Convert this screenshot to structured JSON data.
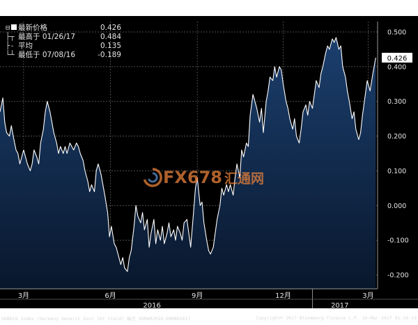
{
  "chart_data": {
    "type": "area",
    "title": "",
    "ylim": [
      -0.24,
      0.53
    ],
    "yticks": [
      0.5,
      0.4,
      0.3,
      0.2,
      0.1,
      0.0,
      -0.1,
      -0.2
    ],
    "ytick_labels": [
      "0.500",
      "0.400",
      "0.300",
      "0.200",
      "0.100",
      "0.000",
      "-0.100",
      "-0.200"
    ],
    "xticks": [
      {
        "date": "2016-03-01",
        "label": "3月"
      },
      {
        "date": "2016-06-01",
        "label": "6月"
      },
      {
        "date": "2016-09-01",
        "label": "9月"
      },
      {
        "date": "2016-12-01",
        "label": "12月"
      },
      {
        "date": "2017-03-01",
        "label": "3月"
      }
    ],
    "year_labels": [
      {
        "date": "2016-07-15",
        "label": "2016"
      },
      {
        "date": "2017-01-30",
        "label": "2017"
      }
    ],
    "year_dividers": [
      "2016-01-01",
      "2017-01-01"
    ],
    "last_value_label": "0.426",
    "series": [
      {
        "color": "#ffffff",
        "fill_top": "#1b3f6e",
        "fill_bottom": "#09172c",
        "points": [
          [
            "2016-02-05",
            0.27
          ],
          [
            "2016-02-08",
            0.31
          ],
          [
            "2016-02-10",
            0.24
          ],
          [
            "2016-02-12",
            0.21
          ],
          [
            "2016-02-15",
            0.2
          ],
          [
            "2016-02-17",
            0.23
          ],
          [
            "2016-02-19",
            0.2
          ],
          [
            "2016-02-22",
            0.16
          ],
          [
            "2016-02-24",
            0.15
          ],
          [
            "2016-02-26",
            0.12
          ],
          [
            "2016-03-01",
            0.16
          ],
          [
            "2016-03-03",
            0.14
          ],
          [
            "2016-03-05",
            0.12
          ],
          [
            "2016-03-08",
            0.1
          ],
          [
            "2016-03-10",
            0.12
          ],
          [
            "2016-03-12",
            0.16
          ],
          [
            "2016-03-15",
            0.14
          ],
          [
            "2016-03-17",
            0.12
          ],
          [
            "2016-03-19",
            0.18
          ],
          [
            "2016-03-22",
            0.22
          ],
          [
            "2016-03-24",
            0.27
          ],
          [
            "2016-03-26",
            0.3
          ],
          [
            "2016-03-29",
            0.27
          ],
          [
            "2016-03-31",
            0.24
          ],
          [
            "2016-04-02",
            0.21
          ],
          [
            "2016-04-05",
            0.18
          ],
          [
            "2016-04-07",
            0.15
          ],
          [
            "2016-04-09",
            0.17
          ],
          [
            "2016-04-12",
            0.15
          ],
          [
            "2016-04-14",
            0.17
          ],
          [
            "2016-04-16",
            0.15
          ],
          [
            "2016-04-19",
            0.18
          ],
          [
            "2016-04-21",
            0.17
          ],
          [
            "2016-04-23",
            0.16
          ],
          [
            "2016-04-26",
            0.18
          ],
          [
            "2016-04-28",
            0.17
          ],
          [
            "2016-04-30",
            0.15
          ],
          [
            "2016-05-03",
            0.13
          ],
          [
            "2016-05-05",
            0.1
          ],
          [
            "2016-05-08",
            0.07
          ],
          [
            "2016-05-10",
            0.04
          ],
          [
            "2016-05-12",
            0.06
          ],
          [
            "2016-05-15",
            0.04
          ],
          [
            "2016-05-17",
            0.1
          ],
          [
            "2016-05-19",
            0.12
          ],
          [
            "2016-05-22",
            0.09
          ],
          [
            "2016-05-24",
            0.06
          ],
          [
            "2016-05-26",
            0.03
          ],
          [
            "2016-05-29",
            -0.02
          ],
          [
            "2016-05-31",
            -0.09
          ],
          [
            "2016-06-02",
            -0.06
          ],
          [
            "2016-06-05",
            -0.11
          ],
          [
            "2016-06-07",
            -0.12
          ],
          [
            "2016-06-09",
            -0.14
          ],
          [
            "2016-06-12",
            -0.17
          ],
          [
            "2016-06-14",
            -0.15
          ],
          [
            "2016-06-16",
            -0.18
          ],
          [
            "2016-06-19",
            -0.19
          ],
          [
            "2016-06-21",
            -0.15
          ],
          [
            "2016-06-23",
            -0.13
          ],
          [
            "2016-06-26",
            -0.06
          ],
          [
            "2016-06-28",
            0.0
          ],
          [
            "2016-06-30",
            -0.03
          ],
          [
            "2016-07-03",
            -0.05
          ],
          [
            "2016-07-05",
            -0.02
          ],
          [
            "2016-07-07",
            -0.07
          ],
          [
            "2016-07-10",
            -0.04
          ],
          [
            "2016-07-12",
            -0.12
          ],
          [
            "2016-07-14",
            -0.08
          ],
          [
            "2016-07-17",
            -0.04
          ],
          [
            "2016-07-19",
            -0.11
          ],
          [
            "2016-07-21",
            -0.07
          ],
          [
            "2016-07-24",
            -0.1
          ],
          [
            "2016-07-26",
            -0.06
          ],
          [
            "2016-07-28",
            -0.11
          ],
          [
            "2016-07-31",
            -0.08
          ],
          [
            "2016-08-02",
            -0.05
          ],
          [
            "2016-08-04",
            -0.09
          ],
          [
            "2016-08-07",
            -0.07
          ],
          [
            "2016-08-09",
            -0.1
          ],
          [
            "2016-08-11",
            -0.06
          ],
          [
            "2016-08-14",
            -0.08
          ],
          [
            "2016-08-16",
            -0.1
          ],
          [
            "2016-08-18",
            -0.05
          ],
          [
            "2016-08-21",
            -0.04
          ],
          [
            "2016-08-23",
            -0.08
          ],
          [
            "2016-08-25",
            -0.12
          ],
          [
            "2016-08-28",
            -0.02
          ],
          [
            "2016-08-30",
            0.05
          ],
          [
            "2016-09-01",
            0.08
          ],
          [
            "2016-09-04",
            0.0
          ],
          [
            "2016-09-06",
            0.01
          ],
          [
            "2016-09-08",
            -0.05
          ],
          [
            "2016-09-11",
            -0.1
          ],
          [
            "2016-09-13",
            -0.13
          ],
          [
            "2016-09-15",
            -0.14
          ],
          [
            "2016-09-18",
            -0.12
          ],
          [
            "2016-09-20",
            -0.08
          ],
          [
            "2016-09-22",
            -0.04
          ],
          [
            "2016-09-25",
            0.0
          ],
          [
            "2016-09-27",
            0.05
          ],
          [
            "2016-09-29",
            0.03
          ],
          [
            "2016-10-02",
            0.06
          ],
          [
            "2016-10-04",
            0.04
          ],
          [
            "2016-10-06",
            0.06
          ],
          [
            "2016-10-09",
            0.03
          ],
          [
            "2016-10-11",
            0.08
          ],
          [
            "2016-10-13",
            0.12
          ],
          [
            "2016-10-16",
            0.08
          ],
          [
            "2016-10-18",
            0.16
          ],
          [
            "2016-10-20",
            0.14
          ],
          [
            "2016-10-23",
            0.18
          ],
          [
            "2016-10-25",
            0.17
          ],
          [
            "2016-10-27",
            0.26
          ],
          [
            "2016-10-30",
            0.32
          ],
          [
            "2016-11-01",
            0.3
          ],
          [
            "2016-11-03",
            0.28
          ],
          [
            "2016-11-06",
            0.24
          ],
          [
            "2016-11-08",
            0.28
          ],
          [
            "2016-11-10",
            0.21
          ],
          [
            "2016-11-13",
            0.3
          ],
          [
            "2016-11-15",
            0.33
          ],
          [
            "2016-11-17",
            0.37
          ],
          [
            "2016-11-20",
            0.36
          ],
          [
            "2016-11-22",
            0.4
          ],
          [
            "2016-11-24",
            0.37
          ],
          [
            "2016-11-27",
            0.4
          ],
          [
            "2016-11-29",
            0.39
          ],
          [
            "2016-12-01",
            0.35
          ],
          [
            "2016-12-04",
            0.3
          ],
          [
            "2016-12-06",
            0.28
          ],
          [
            "2016-12-08",
            0.25
          ],
          [
            "2016-12-11",
            0.22
          ],
          [
            "2016-12-13",
            0.25
          ],
          [
            "2016-12-15",
            0.2
          ],
          [
            "2016-12-18",
            0.18
          ],
          [
            "2016-12-20",
            0.22
          ],
          [
            "2016-12-22",
            0.27
          ],
          [
            "2016-12-25",
            0.29
          ],
          [
            "2016-12-27",
            0.26
          ],
          [
            "2016-12-29",
            0.3
          ],
          [
            "2017-01-01",
            0.28
          ],
          [
            "2017-01-03",
            0.32
          ],
          [
            "2017-01-05",
            0.36
          ],
          [
            "2017-01-08",
            0.34
          ],
          [
            "2017-01-10",
            0.38
          ],
          [
            "2017-01-12",
            0.4
          ],
          [
            "2017-01-15",
            0.44
          ],
          [
            "2017-01-17",
            0.46
          ],
          [
            "2017-01-19",
            0.45
          ],
          [
            "2017-01-22",
            0.48
          ],
          [
            "2017-01-24",
            0.47
          ],
          [
            "2017-01-26",
            0.484
          ],
          [
            "2017-01-29",
            0.45
          ],
          [
            "2017-01-31",
            0.46
          ],
          [
            "2017-02-02",
            0.4
          ],
          [
            "2017-02-05",
            0.37
          ],
          [
            "2017-02-07",
            0.33
          ],
          [
            "2017-02-09",
            0.3
          ],
          [
            "2017-02-12",
            0.25
          ],
          [
            "2017-02-14",
            0.27
          ],
          [
            "2017-02-16",
            0.22
          ],
          [
            "2017-02-19",
            0.19
          ],
          [
            "2017-02-21",
            0.21
          ],
          [
            "2017-02-23",
            0.26
          ],
          [
            "2017-02-26",
            0.32
          ],
          [
            "2017-02-28",
            0.36
          ],
          [
            "2017-03-03",
            0.33
          ],
          [
            "2017-03-06",
            0.38
          ],
          [
            "2017-03-08",
            0.41
          ],
          [
            "2017-03-09",
            0.426
          ]
        ]
      }
    ]
  },
  "legend": [
    {
      "symbol": "⊟",
      "label": "最新价格",
      "value": "0.426"
    },
    {
      "symbol": "├┬",
      "label": "最高于 01/26/17",
      "value": "0.484"
    },
    {
      "symbol": "├-",
      "label": "平均",
      "value": "0.135"
    },
    {
      "symbol": "└┴",
      "label": "最低于 07/08/16",
      "value": "-0.189"
    }
  ],
  "footer": {
    "left": "GDBR10 Index (Germany Generic Govt 10Y Yield)",
    "middle": "每日 09MAR2016-09MAR2017",
    "right_copy": "Copyright© 2017 Bloomberg Finance L.P.",
    "right_date": "10-Mar-2017 01:29:19"
  },
  "watermark": {
    "text": "FX678",
    "suffix": "汇通网"
  },
  "colors": {
    "bg": "#000000",
    "grid": "#5a5a5a",
    "text": "#e6e6e6",
    "line": "#ffffff"
  }
}
